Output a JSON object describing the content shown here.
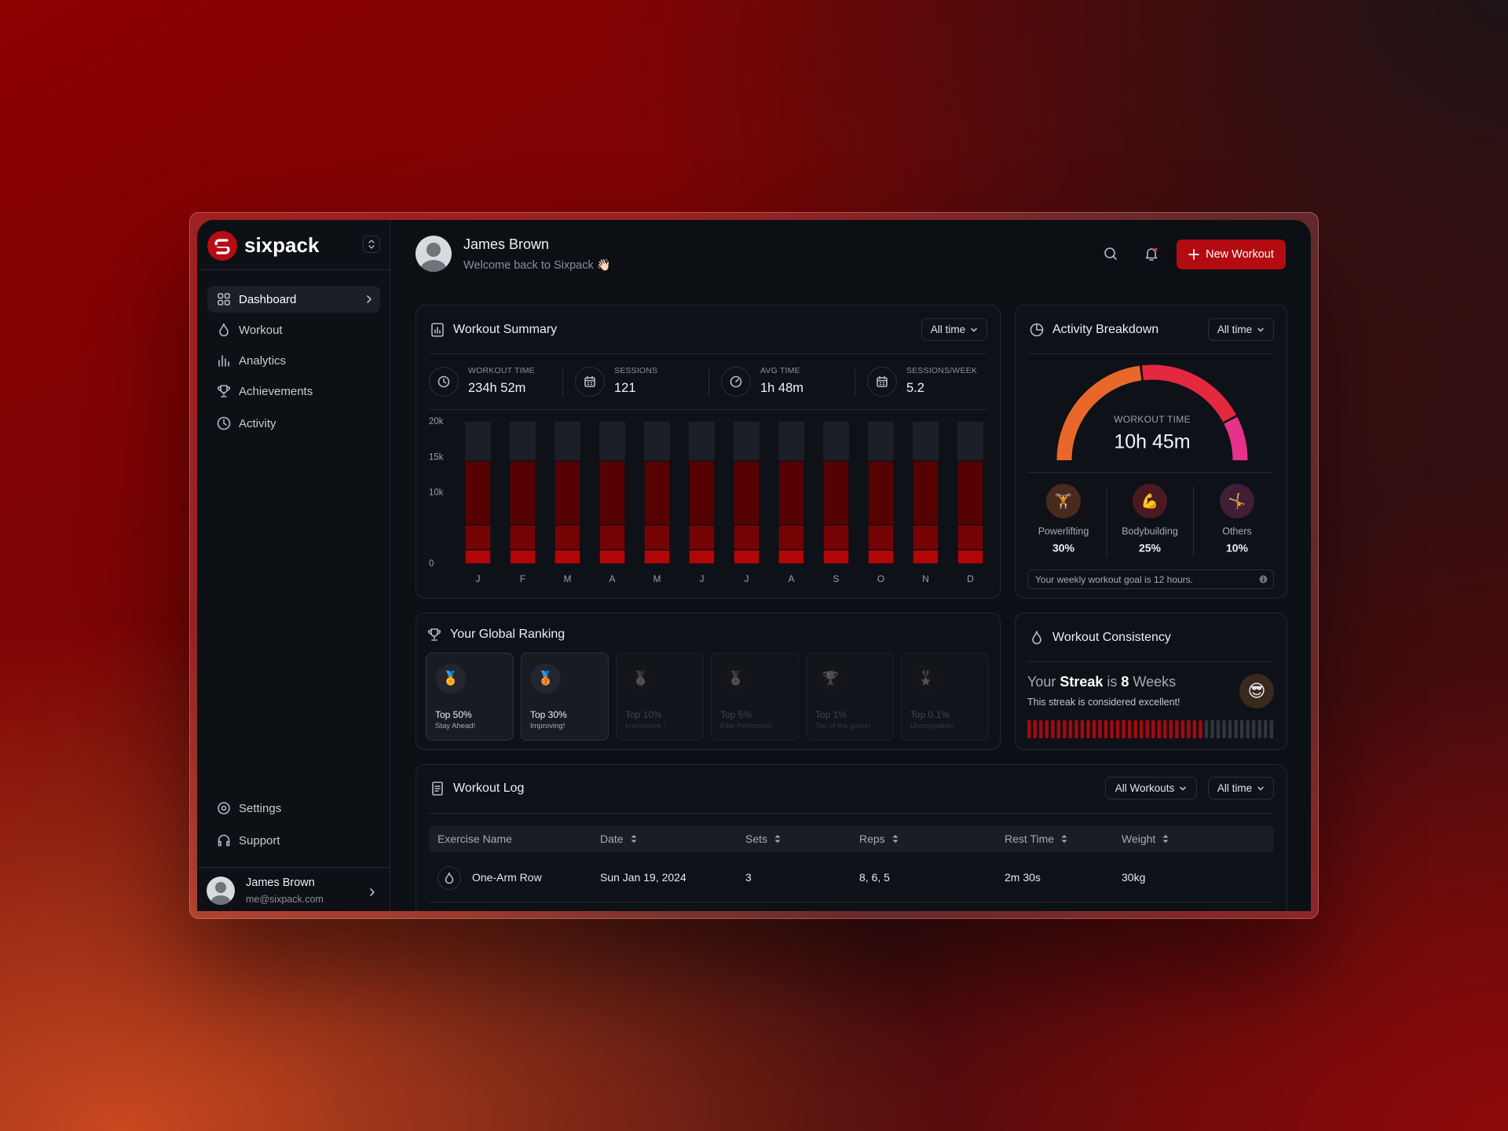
{
  "sidebar": {
    "brand": "sixpack",
    "nav": [
      {
        "label": "Dashboard",
        "active": true
      },
      {
        "label": "Workout",
        "active": false
      },
      {
        "label": "Analytics",
        "active": false
      },
      {
        "label": "Achievements",
        "active": false
      },
      {
        "label": "Activity",
        "active": false
      }
    ],
    "footer_nav": [
      "Settings",
      "Support"
    ],
    "user": {
      "name": "James Brown",
      "email": "me@sixpack.com"
    }
  },
  "header": {
    "name": "James Brown",
    "greeting": "Welcome back to Sixpack 👋🏻",
    "button": "New Workout"
  },
  "workout_summary": {
    "filter": "All time",
    "stats": [
      {
        "label": "WORKOUT TIME",
        "value": "234h 52m"
      },
      {
        "label": "SESSIONS",
        "value": "121"
      },
      {
        "label": "AVG TIME",
        "value": "1h 48m"
      },
      {
        "label": "SESSIONS/WEEK",
        "value": "5.2"
      }
    ]
  },
  "chart_data": [
    {
      "type": "bar",
      "title": "Workout Summary",
      "stacked": true,
      "categories": [
        "J",
        "F",
        "M",
        "A",
        "M",
        "J",
        "J",
        "A",
        "S",
        "O",
        "N",
        "D"
      ],
      "series": [
        {
          "color": "#b00606",
          "values": [
            2000,
            2000,
            2000,
            2000,
            2000,
            2000,
            2000,
            2000,
            2000,
            2000,
            2000,
            2000
          ]
        },
        {
          "color": "#760303",
          "values": [
            3500,
            3500,
            3500,
            3500,
            3500,
            3500,
            3500,
            3500,
            3500,
            3500,
            3500,
            3500
          ]
        },
        {
          "color": "#560202",
          "values": [
            9000,
            9000,
            9000,
            9000,
            9000,
            9000,
            9000,
            9000,
            9000,
            9000,
            9000,
            9000
          ]
        }
      ],
      "ylim": [
        0,
        20000
      ],
      "yticks": [
        0,
        {
          "value": 10000,
          "label": "10k"
        },
        {
          "value": 15000,
          "label": "15k"
        },
        {
          "value": 20000,
          "label": "20k"
        }
      ],
      "grid": false
    },
    {
      "type": "gauge",
      "title": "Activity Breakdown",
      "categories": [
        "Powerlifting",
        "Bodybuilding",
        "Others"
      ],
      "icons": [
        "🏋️",
        "💪",
        "🤸"
      ],
      "values": [
        30,
        25,
        10
      ],
      "value_labels": [
        "30%",
        "25%",
        "10%"
      ],
      "colors": [
        "#e9672b",
        "#e4283f",
        "#e7318b"
      ]
    }
  ],
  "activity_breakdown": {
    "filter": "All time",
    "center_label": "WORKOUT TIME",
    "center_value": "10h 45m",
    "note": "Your weekly workout goal is 12 hours."
  },
  "ranking": {
    "title": "Your Global Ranking",
    "tiers": [
      {
        "icon": "🏅",
        "title": "Top 50%",
        "subtitle": "Stay Ahead!",
        "unlocked": true
      },
      {
        "icon": "🥉",
        "title": "Top 30%",
        "subtitle": "Improving!",
        "unlocked": true
      },
      {
        "icon": "🥈",
        "title": "Top 10%",
        "subtitle": "Impressive !",
        "unlocked": false
      },
      {
        "icon": "🏅",
        "title": "Top 5%",
        "subtitle": "Elite Performer!",
        "unlocked": false
      },
      {
        "icon": "🏆",
        "title": "Top 1%",
        "subtitle": "Top of the game!",
        "unlocked": false
      },
      {
        "icon": "🎖️",
        "title": "Top 0.1%",
        "subtitle": "Unstoppable!",
        "unlocked": false
      }
    ]
  },
  "consistency": {
    "title": "Workout Consistency",
    "streak_text": [
      "Your",
      "Streak",
      "is",
      "8",
      "Weeks"
    ],
    "subtitle": "This streak is considered excellent!",
    "emoji": "😎",
    "meter": {
      "active": 30,
      "total": 42
    }
  },
  "workout_log": {
    "title": "Workout Log",
    "filters": [
      "All Workouts",
      "All time"
    ],
    "columns": [
      "Exercise Name",
      "Date",
      "Sets",
      "Reps",
      "Rest Time",
      "Weight"
    ],
    "sortable": [
      false,
      true,
      true,
      true,
      true,
      true
    ],
    "rows": [
      [
        "One-Arm Row",
        "Sun Jan 19, 2024",
        "3",
        "8, 6, 5",
        "2m 30s",
        "30kg"
      ]
    ]
  }
}
